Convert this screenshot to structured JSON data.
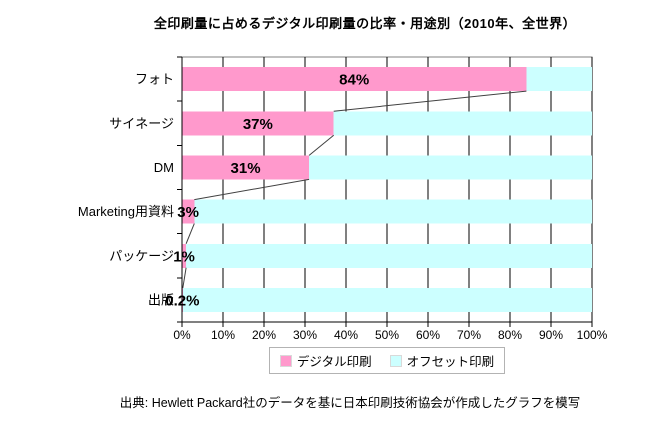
{
  "title": "全印刷量に占めるデジタル印刷量の比率・用途別（2010年、全世界）",
  "footer": "出典: Hewlett Packard社のデータを基に日本印刷技術協会が作成したグラフを模写",
  "chart_data": {
    "type": "bar",
    "subtype": "horizontal-stacked",
    "title": "全印刷量に占めるデジタル印刷量の比率・用途別（2010年、全世界）",
    "categories": [
      "フォト",
      "サイネージ",
      "DM",
      "Marketing用資料",
      "パッケージ",
      "出版"
    ],
    "series": [
      {
        "name": "デジタル印刷",
        "color": "#FF99CC",
        "values": [
          84,
          37,
          31,
          3,
          1,
          0.2
        ]
      },
      {
        "name": "オフセット印刷",
        "color": "#CCFFFF",
        "values": [
          16,
          63,
          69,
          97,
          99,
          99.8
        ]
      }
    ],
    "data_labels": [
      "84%",
      "37%",
      "31%",
      "3%",
      "1%",
      "0.2%"
    ],
    "x_ticks": [
      "0%",
      "10%",
      "20%",
      "30%",
      "40%",
      "50%",
      "60%",
      "70%",
      "80%",
      "90%",
      "100%"
    ],
    "xlim": [
      0,
      100
    ],
    "xlabel": "",
    "ylabel": "",
    "grid": true,
    "series_lines": true,
    "legend_position": "bottom"
  },
  "colors": {
    "digital": "#FF99CC",
    "offset": "#CCFFFF",
    "gridline": "#000000",
    "axis": "#000000",
    "plot_border": "#808080",
    "series_line": "#404040",
    "text": "#000000",
    "background": "#FFFFFF"
  }
}
